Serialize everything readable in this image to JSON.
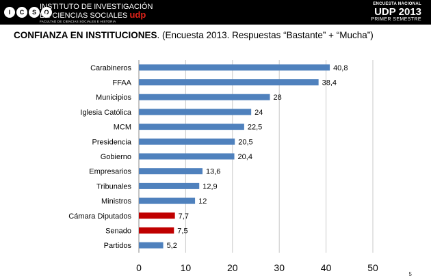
{
  "header": {
    "logo_letters": [
      "I",
      "C",
      "S",
      "O"
    ],
    "institute_line1": "INSTITUTO DE INVESTIGACIÓN",
    "institute_line2": "EN CIENCIAS SOCIALES",
    "institute_brand": "udp",
    "institute_sub": "FACULTAD DE CIENCIAS SOCIALES E HISTORIA",
    "survey_line1": "ENCUESTA NACIONAL",
    "survey_line2": "UDP 2013",
    "survey_line3": "PRIMER SEMESTRE"
  },
  "slide": {
    "title_bold": "CONFIANZA EN INSTITUCIONES",
    "title_rest": ". (Encuesta 2013. Respuestas “Bastante” + “Mucha”)",
    "page_number": "5"
  },
  "colors": {
    "bar_default": "#4f81bd",
    "bar_highlight": "#c00000",
    "header_bg": "#000000",
    "brand_red": "#e2231a"
  },
  "chart_data": {
    "type": "bar",
    "orientation": "horizontal",
    "categories": [
      "Carabineros",
      "FFAA",
      "Municipios",
      "Iglesia Católica",
      "MCM",
      "Presidencia",
      "Gobierno",
      "Empresarios",
      "Tribunales",
      "Ministros",
      "Cámara Diputados",
      "Senado",
      "Partidos"
    ],
    "values": [
      40.8,
      38.4,
      28,
      24,
      22.5,
      20.5,
      20.4,
      13.6,
      12.9,
      12,
      7.7,
      7.5,
      5.2
    ],
    "value_labels": [
      "40,8",
      "38,4",
      "28",
      "24",
      "22,5",
      "20,5",
      "20,4",
      "13,6",
      "12,9",
      "12",
      "7,7",
      "7,5",
      "5,2"
    ],
    "highlighted": [
      false,
      false,
      false,
      false,
      false,
      false,
      false,
      false,
      false,
      false,
      true,
      true,
      false
    ],
    "xlim": [
      0,
      50
    ],
    "xticks": [
      0,
      10,
      20,
      30,
      40,
      50
    ],
    "grid": "vertical",
    "legend": "none"
  }
}
